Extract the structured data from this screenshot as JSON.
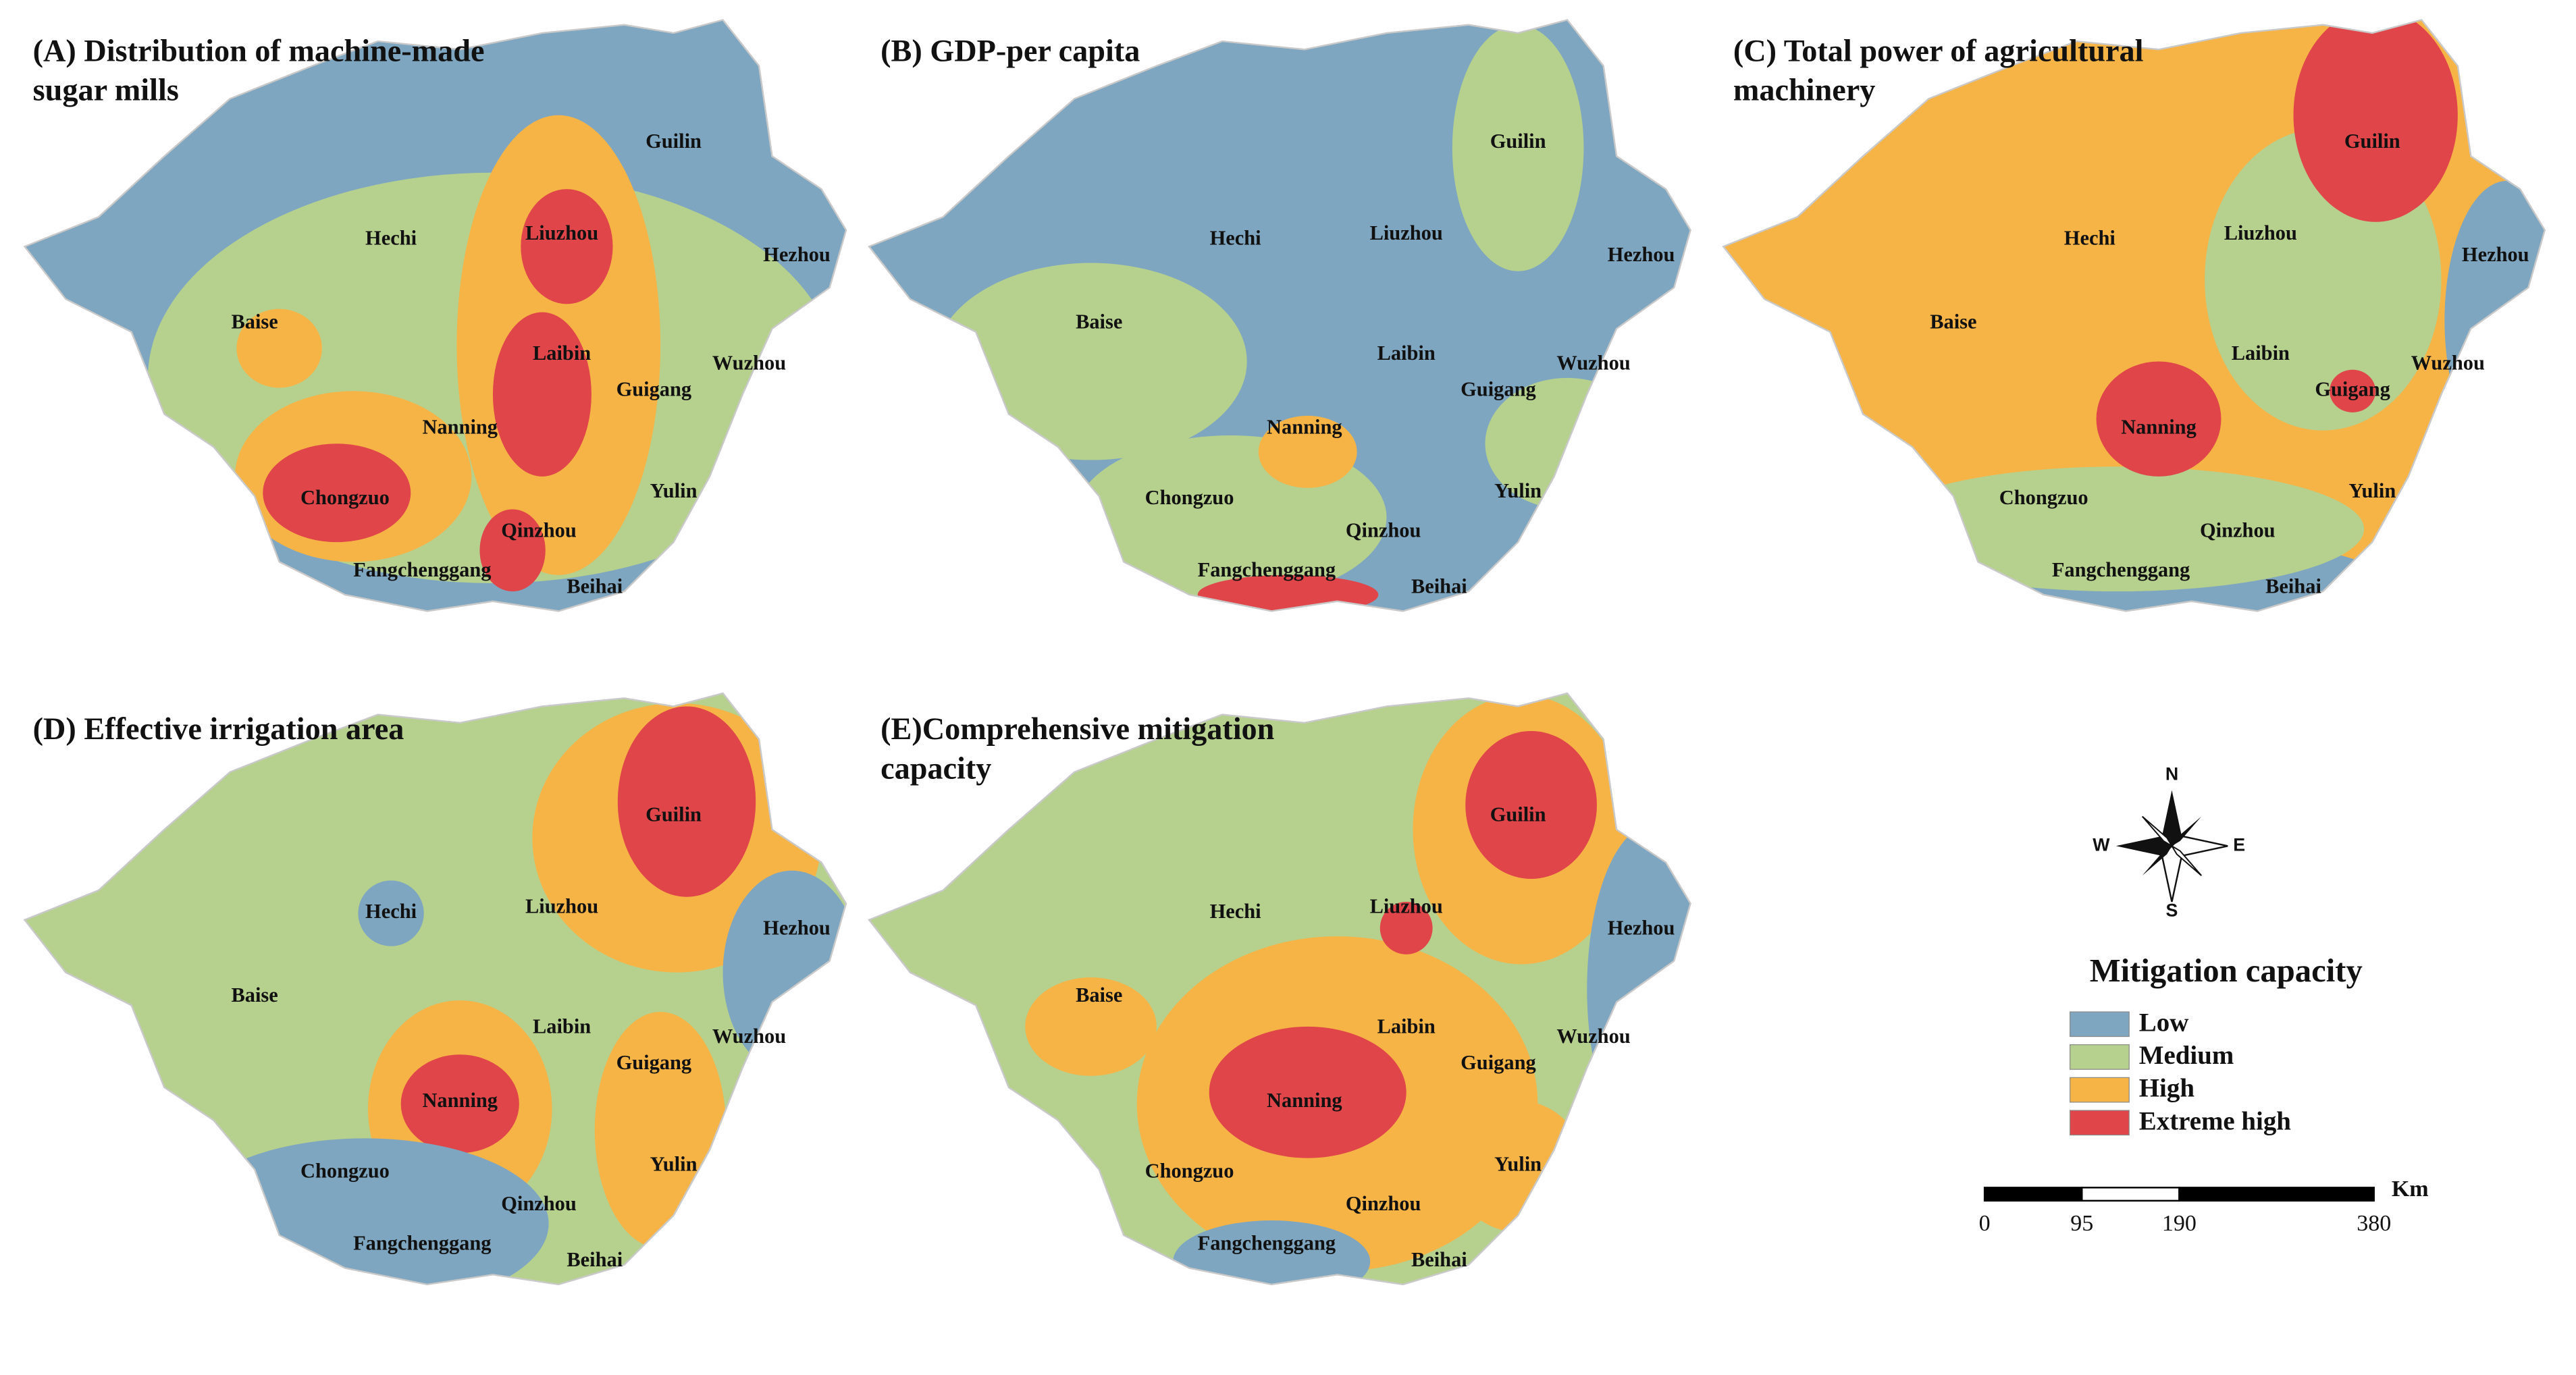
{
  "panels": [
    {
      "title": [
        "(A) Distribution of machine-made",
        "sugar mills"
      ]
    },
    {
      "title": [
        "(B) GDP-per capita"
      ]
    },
    {
      "title": [
        "(C) Total power of agricultural",
        "machinery"
      ]
    },
    {
      "title": [
        "(D) Effective irrigation area"
      ]
    },
    {
      "title": [
        "(E)Comprehensive mitigation",
        "capacity"
      ]
    }
  ],
  "cities": [
    "Guilin",
    "Hechi",
    "Liuzhou",
    "Hezhou",
    "Baise",
    "Laibin",
    "Wuzhou",
    "Guigang",
    "Nanning",
    "Yulin",
    "Chongzuo",
    "Qinzhou",
    "Fangchenggang",
    "Beihai"
  ],
  "compass": {
    "north": "N",
    "south": "S",
    "east": "E",
    "west": "W"
  },
  "legend": {
    "title": "Mitigation capacity",
    "items": [
      {
        "label": "Low",
        "color": "#7ea6c0"
      },
      {
        "label": "Medium",
        "color": "#b6d08e"
      },
      {
        "label": "High",
        "color": "#f6b447"
      },
      {
        "label": "Extreme high",
        "color": "#df4549"
      }
    ]
  },
  "scale_bar": {
    "unit": "Km",
    "ticks": [
      0,
      95,
      190,
      380
    ]
  }
}
